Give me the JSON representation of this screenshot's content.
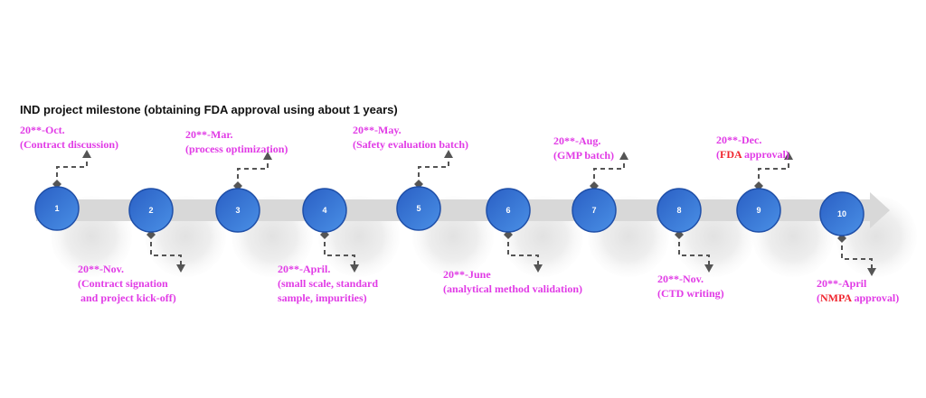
{
  "title": "IND project milestone (obtaining FDA approval using about 1 years)",
  "colors": {
    "label": "#e13be6",
    "highlight": "#f0262f",
    "circle": "#2f6fd0",
    "bar": "#d8d8d8",
    "connector": "#555555"
  },
  "milestones": [
    {
      "number": "1",
      "position": "top",
      "lines": [
        [
          {
            "text": "20**-Oct."
          }
        ],
        [
          {
            "text": "(Contract discussion)"
          }
        ]
      ]
    },
    {
      "number": "2",
      "position": "bottom",
      "lines": [
        [
          {
            "text": "20**-Nov."
          }
        ],
        [
          {
            "text": "(Contract signation"
          }
        ],
        [
          {
            "text": " and project kick-off)"
          }
        ]
      ]
    },
    {
      "number": "3",
      "position": "top",
      "lines": [
        [
          {
            "text": "20**-Mar."
          }
        ],
        [
          {
            "text": "(process optimization)"
          }
        ]
      ]
    },
    {
      "number": "4",
      "position": "bottom",
      "lines": [
        [
          {
            "text": "20**-April."
          }
        ],
        [
          {
            "text": "(small scale, standard"
          }
        ],
        [
          {
            "text": "sample, impurities)"
          }
        ]
      ]
    },
    {
      "number": "5",
      "position": "top",
      "lines": [
        [
          {
            "text": "20**-May."
          }
        ],
        [
          {
            "text": "(Safety evaluation batch)"
          }
        ]
      ]
    },
    {
      "number": "6",
      "position": "bottom",
      "lines": [
        [
          {
            "text": "20**-June"
          }
        ],
        [
          {
            "text": "(analytical method validation)"
          }
        ]
      ]
    },
    {
      "number": "7",
      "position": "top",
      "lines": [
        [
          {
            "text": "20**-Aug."
          }
        ],
        [
          {
            "text": "(GMP batch)"
          }
        ]
      ]
    },
    {
      "number": "8",
      "position": "bottom",
      "lines": [
        [
          {
            "text": "20**-Nov."
          }
        ],
        [
          {
            "text": "(CTD writing)"
          }
        ]
      ]
    },
    {
      "number": "9",
      "position": "top",
      "lines": [
        [
          {
            "text": "20**-Dec."
          }
        ],
        [
          {
            "text": "("
          },
          {
            "text": "FDA",
            "highlight": true
          },
          {
            "text": " approval)"
          }
        ]
      ]
    },
    {
      "number": "10",
      "position": "bottom",
      "lines": [
        [
          {
            "text": "20**-April"
          }
        ],
        [
          {
            "text": "("
          },
          {
            "text": "NMPA",
            "highlight": true
          },
          {
            "text": " approval)"
          }
        ]
      ]
    }
  ]
}
